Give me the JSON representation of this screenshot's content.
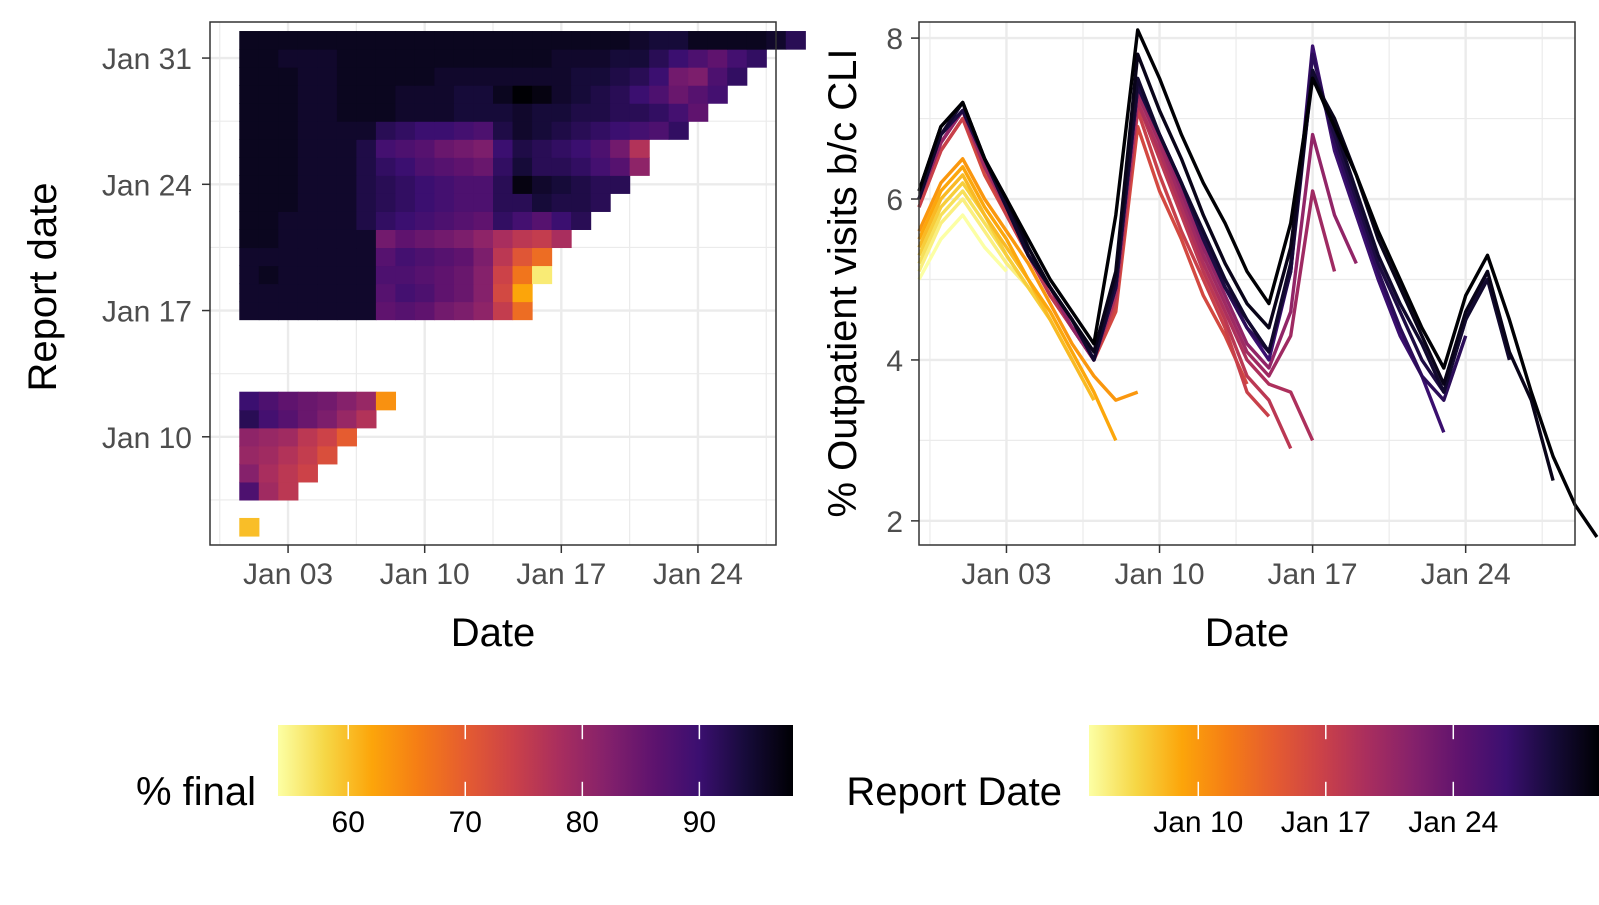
{
  "chart_data": [
    {
      "type": "heatmap",
      "title": "",
      "xlabel": "Date",
      "ylabel": "Report date",
      "x_range": [
        "2021-12-30",
        "2022-01-28"
      ],
      "y_range": [
        "2022-01-04",
        "2022-02-02"
      ],
      "x_ticks": [
        {
          "date": "2022-01-03",
          "label": "Jan 03"
        },
        {
          "date": "2022-01-10",
          "label": "Jan 10"
        },
        {
          "date": "2022-01-17",
          "label": "Jan 17"
        },
        {
          "date": "2022-01-24",
          "label": "Jan 24"
        }
      ],
      "y_ticks": [
        {
          "date": "2022-01-10",
          "label": "Jan 10"
        },
        {
          "date": "2022-01-17",
          "label": "Jan 17"
        },
        {
          "date": "2022-01-24",
          "label": "Jan 24"
        },
        {
          "date": "2022-01-31",
          "label": "Jan 31"
        }
      ],
      "grid": true,
      "legend": {
        "title": "% final",
        "position": "bottom",
        "range": [
          54,
          98
        ],
        "ticks": [
          {
            "value": 60,
            "label": "60"
          },
          {
            "value": 70,
            "label": "70"
          },
          {
            "value": 80,
            "label": "80"
          },
          {
            "value": 90,
            "label": "90"
          }
        ]
      },
      "report_dates": [
        "2022-01-05",
        "2022-01-07",
        "2022-01-08",
        "2022-01-09",
        "2022-01-10",
        "2022-01-11",
        "2022-01-12",
        "2022-01-17",
        "2022-01-18",
        "2022-01-19",
        "2022-01-20",
        "2022-01-21",
        "2022-01-22",
        "2022-01-23",
        "2022-01-24",
        "2022-01-25",
        "2022-01-26",
        "2022-01-27",
        "2022-01-28",
        "2022-01-29",
        "2022-01-30",
        "2022-01-31",
        "2022-02-01"
      ],
      "start_date": "2022-01-01",
      "values": [
        [
          60
        ],
        [
          88,
          79,
          76
        ],
        [
          82,
          78,
          76,
          74
        ],
        [
          80,
          79,
          77,
          75,
          72
        ],
        [
          81,
          80,
          79,
          76,
          74,
          70
        ],
        [
          92,
          89,
          87,
          85,
          83,
          80,
          77
        ],
        [
          90,
          88,
          86,
          85,
          84,
          82,
          80,
          64
        ],
        [
          95,
          95,
          95,
          95,
          95,
          95,
          95,
          86,
          87,
          86,
          84,
          83,
          81,
          75,
          68
        ],
        [
          95,
          95,
          95,
          95,
          95,
          95,
          95,
          87,
          89,
          88,
          86,
          85,
          82,
          73,
          62
        ],
        [
          95,
          96,
          95,
          95,
          95,
          95,
          95,
          88,
          88,
          87,
          86,
          85,
          82,
          74,
          67,
          56
        ],
        [
          95,
          95,
          95,
          95,
          95,
          95,
          95,
          87,
          89,
          88,
          87,
          86,
          83,
          76,
          71,
          68
        ],
        [
          96,
          96,
          95,
          95,
          95,
          95,
          95,
          84,
          86,
          85,
          84,
          83,
          81,
          78,
          76,
          75,
          78
        ],
        [
          96,
          96,
          95,
          95,
          95,
          95,
          93,
          91,
          90,
          89,
          88,
          87,
          86,
          91,
          89,
          87,
          90,
          92
        ],
        [
          96,
          96,
          96,
          95,
          95,
          95,
          93,
          92,
          91,
          90,
          89,
          88,
          88,
          92,
          92,
          94,
          93,
          93,
          92
        ],
        [
          96,
          96,
          96,
          95,
          95,
          95,
          93,
          92,
          91,
          90,
          89,
          88,
          88,
          92,
          97,
          95,
          94,
          93,
          92,
          92
        ],
        [
          96,
          96,
          96,
          95,
          95,
          95,
          93,
          91,
          90,
          88,
          87,
          86,
          85,
          91,
          94,
          92,
          92,
          91,
          89,
          87,
          81
        ],
        [
          96,
          96,
          96,
          95,
          95,
          95,
          93,
          89,
          88,
          87,
          85,
          84,
          83,
          90,
          93,
          92,
          91,
          90,
          88,
          84,
          77
        ],
        [
          96,
          96,
          96,
          95,
          95,
          95,
          95,
          92,
          91,
          90,
          90,
          89,
          88,
          93,
          95,
          94,
          93,
          92,
          91,
          90,
          89,
          88,
          91
        ],
        [
          96,
          96,
          96,
          95,
          95,
          96,
          96,
          96,
          95,
          95,
          95,
          94,
          94,
          94,
          95,
          94,
          94,
          93,
          93,
          92,
          92,
          91,
          89,
          86
        ],
        [
          96,
          96,
          96,
          95,
          95,
          96,
          96,
          96,
          95,
          95,
          95,
          94,
          94,
          96,
          98,
          97,
          95,
          94,
          93,
          92,
          90,
          88,
          85,
          87,
          89
        ],
        [
          96,
          96,
          96,
          95,
          95,
          96,
          96,
          96,
          96,
          96,
          95,
          95,
          95,
          95,
          95,
          95,
          95,
          94,
          94,
          93,
          92,
          90,
          84,
          83,
          88,
          91
        ],
        [
          96,
          96,
          95,
          95,
          95,
          96,
          96,
          96,
          96,
          96,
          96,
          96,
          96,
          96,
          96,
          96,
          95,
          95,
          95,
          94,
          94,
          92,
          90,
          88,
          86,
          89,
          91
        ],
        [
          96,
          96,
          96,
          96,
          96,
          96,
          96,
          96,
          96,
          96,
          96,
          96,
          96,
          96,
          96,
          96,
          96,
          96,
          96,
          96,
          95,
          94,
          94,
          96,
          96,
          96,
          96,
          95,
          92
        ]
      ]
    },
    {
      "type": "line",
      "title": "",
      "xlabel": "Date",
      "ylabel": "% Outpatient visits b/c CLI",
      "x_range": [
        "2021-12-30",
        "2022-01-29"
      ],
      "ylim": [
        1.7,
        8.2
      ],
      "x_ticks": [
        {
          "date": "2022-01-03",
          "label": "Jan 03"
        },
        {
          "date": "2022-01-10",
          "label": "Jan 10"
        },
        {
          "date": "2022-01-17",
          "label": "Jan 17"
        },
        {
          "date": "2022-01-24",
          "label": "Jan 24"
        }
      ],
      "y_ticks": [
        {
          "value": 2,
          "label": "2"
        },
        {
          "value": 4,
          "label": "4"
        },
        {
          "value": 6,
          "label": "6"
        },
        {
          "value": 8,
          "label": "8"
        }
      ],
      "grid": true,
      "legend": {
        "title": "Report Date",
        "position": "bottom",
        "range": [
          "2022-01-04",
          "2022-02-01"
        ],
        "ticks": [
          {
            "date": "2022-01-10",
            "label": "Jan 10"
          },
          {
            "date": "2022-01-17",
            "label": "Jan 17"
          },
          {
            "date": "2022-01-24",
            "label": "Jan 24"
          }
        ]
      },
      "x_start": "2021-12-30",
      "series": [
        {
          "report_date": "2022-01-04",
          "values": [
            5.0,
            5.5,
            5.8,
            5.4,
            5.1
          ]
        },
        {
          "report_date": "2022-01-05",
          "values": [
            5.1,
            5.7,
            6.0,
            5.6,
            5.2,
            4.9
          ]
        },
        {
          "report_date": "2022-01-06",
          "values": [
            5.2,
            5.8,
            6.1,
            5.7,
            5.3,
            4.9,
            4.5
          ]
        },
        {
          "report_date": "2022-01-07",
          "values": [
            5.3,
            5.9,
            6.2,
            5.8,
            5.3,
            4.9,
            4.5,
            4.0
          ]
        },
        {
          "report_date": "2022-01-08",
          "values": [
            5.4,
            6.0,
            6.3,
            5.8,
            5.4,
            5.0,
            4.5,
            4.0,
            3.5
          ]
        },
        {
          "report_date": "2022-01-09",
          "values": [
            5.5,
            6.1,
            6.4,
            5.9,
            5.5,
            5.0,
            4.6,
            4.1,
            3.6,
            3.0
          ]
        },
        {
          "report_date": "2022-01-10",
          "values": [
            5.6,
            6.2,
            6.5,
            6.0,
            5.6,
            5.2,
            4.7,
            4.2,
            3.8,
            3.5,
            3.6
          ]
        },
        {
          "report_date": "2022-01-16",
          "values": [
            5.9,
            6.6,
            7.0,
            6.3,
            5.8,
            5.3,
            4.8,
            4.4,
            4.0,
            4.6,
            6.9,
            6.1,
            5.5,
            4.8,
            4.3,
            3.7
          ]
        },
        {
          "report_date": "2022-01-17",
          "values": [
            5.9,
            6.6,
            7.0,
            6.4,
            5.8,
            5.3,
            4.8,
            4.4,
            4.0,
            4.7,
            7.1,
            6.3,
            5.6,
            5.0,
            4.4,
            3.6,
            3.3
          ]
        },
        {
          "report_date": "2022-01-18",
          "values": [
            6.0,
            6.7,
            7.1,
            6.4,
            5.9,
            5.3,
            4.8,
            4.4,
            4.0,
            4.8,
            7.2,
            6.5,
            5.8,
            5.1,
            4.5,
            3.8,
            3.5,
            2.9
          ]
        },
        {
          "report_date": "2022-01-19",
          "values": [
            6.0,
            6.7,
            7.1,
            6.4,
            5.9,
            5.3,
            4.9,
            4.4,
            4.0,
            4.8,
            7.2,
            6.6,
            5.9,
            5.2,
            4.6,
            4.0,
            3.7,
            3.6,
            3.0
          ]
        },
        {
          "report_date": "2022-01-20",
          "values": [
            6.0,
            6.7,
            7.1,
            6.4,
            5.9,
            5.3,
            4.9,
            4.4,
            4.0,
            4.9,
            7.3,
            6.7,
            6.0,
            5.3,
            4.7,
            4.1,
            3.8,
            4.3,
            6.1,
            5.1
          ]
        },
        {
          "report_date": "2022-01-21",
          "values": [
            6.0,
            6.7,
            7.1,
            6.5,
            5.9,
            5.3,
            4.9,
            4.4,
            4.0,
            4.9,
            7.4,
            6.8,
            6.1,
            5.4,
            4.8,
            4.2,
            3.9,
            4.6,
            6.8,
            5.8,
            5.2
          ]
        },
        {
          "report_date": "2022-01-27",
          "values": [
            6.0,
            6.8,
            7.1,
            6.5,
            5.9,
            5.3,
            4.9,
            4.5,
            4.0,
            4.9,
            7.4,
            6.8,
            6.2,
            5.5,
            4.9,
            4.4,
            4.0,
            5.1,
            7.9,
            6.6,
            5.8,
            5.0,
            4.3,
            3.8,
            3.1
          ]
        },
        {
          "report_date": "2022-01-28",
          "values": [
            6.0,
            6.8,
            7.1,
            6.5,
            5.9,
            5.3,
            4.9,
            4.5,
            4.0,
            4.9,
            7.4,
            6.8,
            6.2,
            5.5,
            4.9,
            4.4,
            4.1,
            5.1,
            7.8,
            6.7,
            5.9,
            5.1,
            4.4,
            3.8,
            3.5,
            4.3
          ]
        },
        {
          "report_date": "2022-01-29",
          "values": [
            6.0,
            6.8,
            7.1,
            6.5,
            5.9,
            5.3,
            4.9,
            4.5,
            4.0,
            4.9,
            7.4,
            6.8,
            6.2,
            5.5,
            4.9,
            4.5,
            4.1,
            5.1,
            7.6,
            6.8,
            6.0,
            5.2,
            4.6,
            4.0,
            3.6,
            4.5,
            5.1
          ]
        },
        {
          "report_date": "2022-01-30",
          "values": [
            6.0,
            6.8,
            7.2,
            6.5,
            5.9,
            5.3,
            4.9,
            4.5,
            4.0,
            5.0,
            7.5,
            6.8,
            6.2,
            5.6,
            5.0,
            4.5,
            4.1,
            5.2,
            7.6,
            6.9,
            6.1,
            5.3,
            4.7,
            4.2,
            3.6,
            4.5,
            5.0,
            4.0
          ]
        },
        {
          "report_date": "2022-01-31",
          "values": [
            6.1,
            6.9,
            7.2,
            6.5,
            6.0,
            5.4,
            4.9,
            4.5,
            4.1,
            5.1,
            7.8,
            7.1,
            6.5,
            5.8,
            5.2,
            4.7,
            4.4,
            5.4,
            7.5,
            7.0,
            6.3,
            5.5,
            4.9,
            4.3,
            3.7,
            4.6,
            5.1,
            4.1,
            3.5,
            2.5
          ]
        },
        {
          "report_date": "2022-02-01",
          "values": [
            6.1,
            6.9,
            7.2,
            6.5,
            6.0,
            5.5,
            5.0,
            4.6,
            4.2,
            5.8,
            8.1,
            7.5,
            6.8,
            6.2,
            5.7,
            5.1,
            4.7,
            5.7,
            7.5,
            6.9,
            6.3,
            5.6,
            5.0,
            4.4,
            3.9,
            4.8,
            5.3,
            4.5,
            3.6,
            2.8,
            2.2,
            1.8
          ]
        }
      ]
    }
  ]
}
